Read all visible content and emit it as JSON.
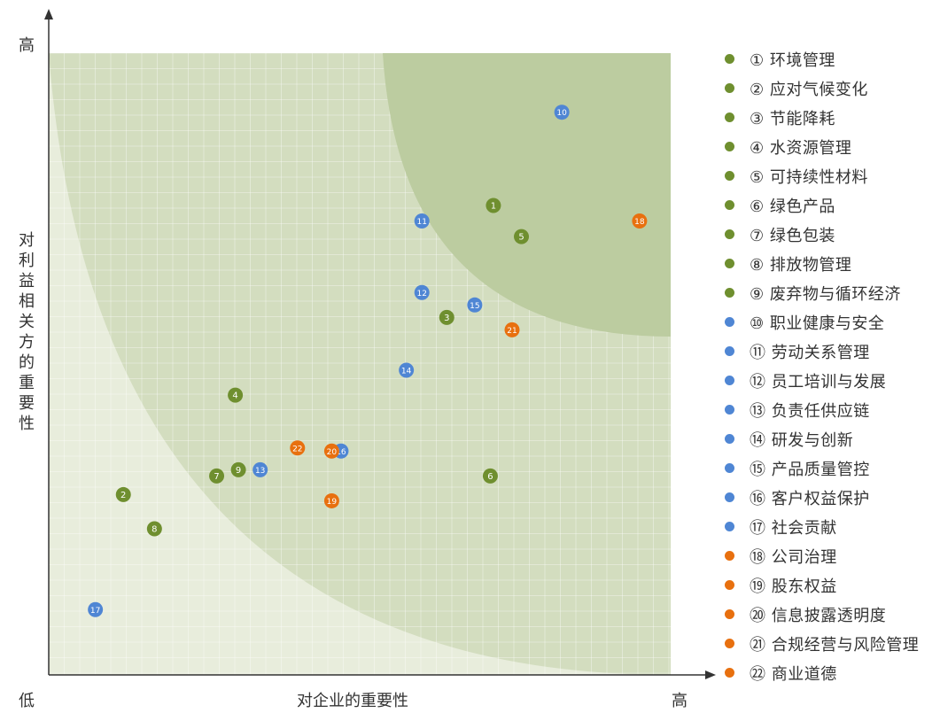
{
  "chart_data": {
    "type": "scatter",
    "title": "",
    "xlabel": "对企业的重要性",
    "ylabel": "对利益相关方的重要性",
    "x_low_label": "低",
    "x_high_label": "高",
    "y_high_label": "高",
    "xlim": [
      0,
      100
    ],
    "ylim": [
      0,
      100
    ],
    "grid": true,
    "legend_position": "right",
    "series": [
      {
        "color": "#6f8f2f",
        "points": [
          {
            "id": "1",
            "label": "① 环境管理",
            "x": 71.5,
            "y": 75.5
          },
          {
            "id": "2",
            "label": "② 应对气候变化",
            "x": 12.0,
            "y": 29.0
          },
          {
            "id": "3",
            "label": "③ 节能降耗",
            "x": 64.0,
            "y": 57.5
          },
          {
            "id": "4",
            "label": "④ 水资源管理",
            "x": 30.0,
            "y": 45.0
          },
          {
            "id": "5",
            "label": "⑤ 可持续性材料",
            "x": 76.0,
            "y": 70.5
          },
          {
            "id": "6",
            "label": "⑥ 绿色产品",
            "x": 71.0,
            "y": 32.0
          },
          {
            "id": "7",
            "label": "⑦ 绿色包装",
            "x": 27.0,
            "y": 32.0
          },
          {
            "id": "8",
            "label": "⑧ 排放物管理",
            "x": 17.0,
            "y": 23.5
          },
          {
            "id": "9",
            "label": "⑨ 废弃物与循环经济",
            "x": 30.5,
            "y": 33.0
          }
        ]
      },
      {
        "color": "#4f86d4",
        "points": [
          {
            "id": "10",
            "label": "⑩ 职业健康与安全",
            "x": 82.5,
            "y": 90.5
          },
          {
            "id": "11",
            "label": "⑪ 劳动关系管理",
            "x": 60.0,
            "y": 73.0
          },
          {
            "id": "12",
            "label": "⑫ 员工培训与发展",
            "x": 60.0,
            "y": 61.5
          },
          {
            "id": "13",
            "label": "⑬ 负责任供应链",
            "x": 34.0,
            "y": 33.0
          },
          {
            "id": "14",
            "label": "⑭ 研发与创新",
            "x": 57.5,
            "y": 49.0
          },
          {
            "id": "15",
            "label": "⑮ 产品质量管控",
            "x": 68.5,
            "y": 59.5
          },
          {
            "id": "16",
            "label": "⑯ 客户权益保护",
            "x": 47.0,
            "y": 36.0
          },
          {
            "id": "17",
            "label": "⑰ 社会贡献",
            "x": 7.5,
            "y": 10.5
          }
        ]
      },
      {
        "color": "#e8700f",
        "points": [
          {
            "id": "18",
            "label": "⑱ 公司治理",
            "x": 95.0,
            "y": 73.0
          },
          {
            "id": "19",
            "label": "⑲ 股东权益",
            "x": 45.5,
            "y": 28.0
          },
          {
            "id": "20",
            "label": "⑳ 信息披露透明度",
            "x": 45.5,
            "y": 36.0
          },
          {
            "id": "21",
            "label": "㉑ 合规经营与风险管理",
            "x": 74.5,
            "y": 55.5
          },
          {
            "id": "22",
            "label": "㉒ 商业道德",
            "x": 40.0,
            "y": 36.5
          }
        ]
      }
    ]
  },
  "colors": {
    "outer_zone": "#e8eddc",
    "middle_zone": "#d3ddbf",
    "inner_zone": "#bccca0",
    "grid": "#ffffff",
    "axis": "#333333"
  }
}
